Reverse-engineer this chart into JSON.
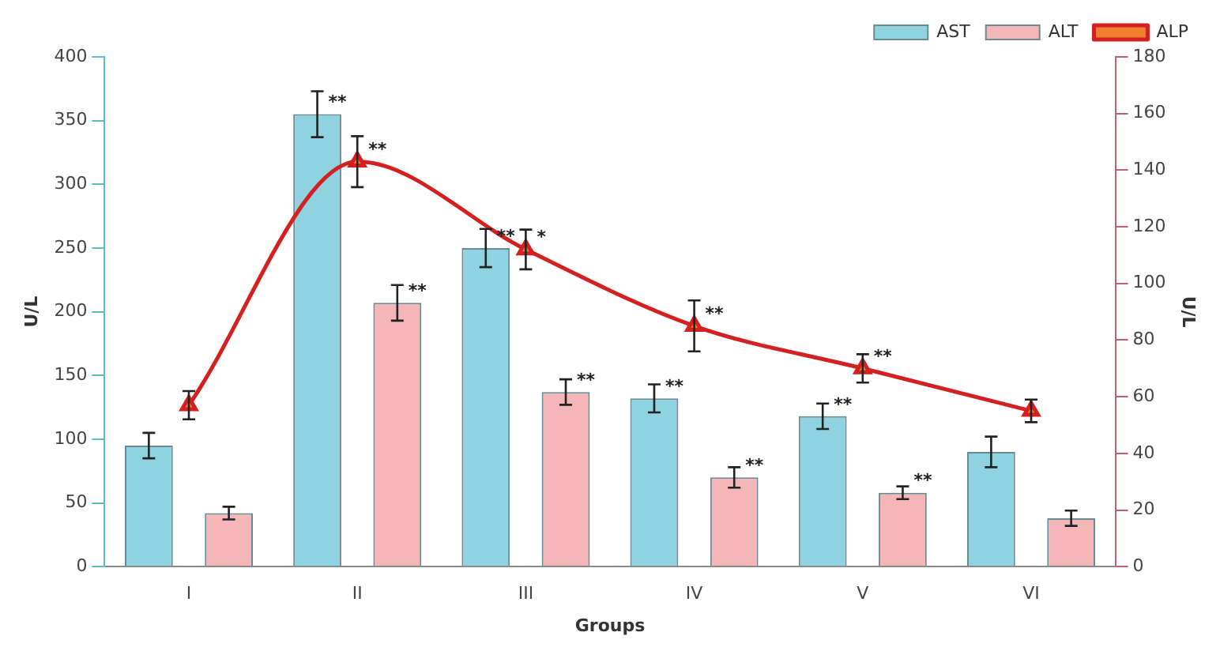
{
  "chart_data": {
    "type": "bar",
    "xlabel": "Groups",
    "ylabel": "U/L",
    "y2label": "U/L",
    "categories": [
      "I",
      "II",
      "III",
      "IV",
      "V",
      "VI"
    ],
    "ylim": [
      0,
      400
    ],
    "yticks": [
      0,
      50,
      100,
      150,
      200,
      250,
      300,
      350,
      400
    ],
    "y2lim": [
      0,
      180
    ],
    "y2ticks": [
      0,
      20,
      40,
      60,
      80,
      100,
      120,
      140,
      160,
      180
    ],
    "grid": false,
    "legend": "top right",
    "marker": "triangle",
    "series": [
      {
        "name": "AST",
        "color": "#8fd3e0",
        "values": [
          95,
          355,
          250,
          132,
          118,
          90
        ],
        "errors": [
          10,
          18,
          15,
          11,
          10,
          12
        ],
        "value_labels": [
          null,
          "**",
          "**",
          "**",
          "**",
          null
        ]
      },
      {
        "name": "ALT",
        "color": "#f4b6b6",
        "values": [
          42,
          207,
          137,
          70,
          58,
          38
        ],
        "errors": [
          5,
          14,
          10,
          8,
          5,
          6
        ],
        "value_labels": [
          null,
          "**",
          "**",
          "**",
          "**",
          null
        ]
      },
      {
        "name": "ALP",
        "type": "line",
        "axis": "y2",
        "color": "#d42020",
        "values": [
          57,
          143,
          112,
          85,
          70,
          55
        ],
        "errors": [
          5,
          9,
          7,
          9,
          5,
          4
        ],
        "value_labels": [
          null,
          "**",
          "*",
          "**",
          "**",
          null
        ]
      }
    ]
  }
}
